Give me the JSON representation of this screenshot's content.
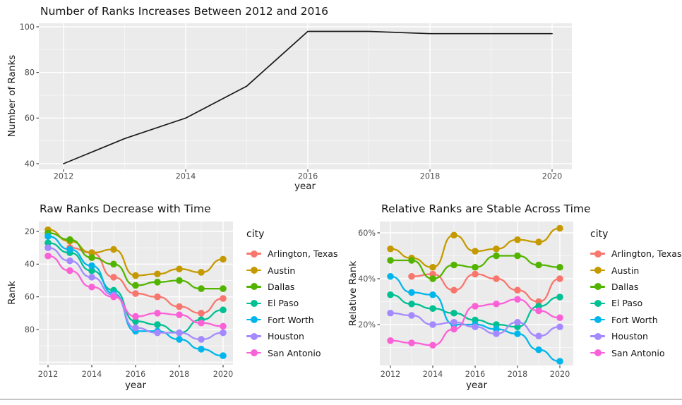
{
  "figure": {
    "background": "#ffffff",
    "panel_background": "#ebebeb",
    "grid_color": "#ffffff",
    "axis_text_color": "#4d4d4d",
    "tick_mark_color": "#333333",
    "title_color": "#141414",
    "bottom_rule_color": "#c6c6c6"
  },
  "chart_data": [
    {
      "type": "line",
      "title": "Number of Ranks Increases Between 2012 and 2016",
      "xlabel": "year",
      "ylabel": "Number of Ranks",
      "x": [
        2012,
        2013,
        2014,
        2015,
        2016,
        2017,
        2018,
        2019,
        2020
      ],
      "values": [
        40,
        51,
        60,
        74,
        98,
        98,
        97,
        97,
        97
      ],
      "line_color": "#1a1a1a",
      "xticks": [
        "2012",
        "2014",
        "2016",
        "2018",
        "2020"
      ],
      "xtick_values": [
        2012,
        2014,
        2016,
        2018,
        2020
      ],
      "yticks": [
        "40",
        "60",
        "80",
        "100"
      ],
      "ytick_values": [
        40,
        60,
        80,
        100
      ],
      "ylim": [
        37,
        102
      ],
      "grid": true,
      "legend": false
    },
    {
      "type": "line",
      "title": "Raw Ranks Decrease with Time",
      "xlabel": "year",
      "ylabel": "Rank",
      "y_reversed": true,
      "legend_title": "city",
      "legend_position": "right",
      "x": [
        2012,
        2013,
        2014,
        2015,
        2016,
        2017,
        2018,
        2019,
        2020
      ],
      "series": [
        {
          "name": "Arlington, Texas",
          "color": "#F8766D",
          "values": [
            null,
            30,
            33,
            48,
            58,
            60,
            66,
            70,
            61
          ]
        },
        {
          "name": "Austin",
          "color": "#C49A00",
          "values": [
            19,
            26,
            33,
            31,
            47,
            46,
            43,
            45,
            37
          ]
        },
        {
          "name": "Dallas",
          "color": "#53B400",
          "values": [
            21,
            25,
            36,
            40,
            53,
            51,
            50,
            55,
            55
          ]
        },
        {
          "name": "El Paso",
          "color": "#00C094",
          "values": [
            27,
            33,
            44,
            56,
            75,
            77,
            82,
            74,
            68
          ]
        },
        {
          "name": "Fort Worth",
          "color": "#00B6EB",
          "values": [
            23,
            31,
            41,
            58,
            81,
            81,
            86,
            92,
            96
          ]
        },
        {
          "name": "Houston",
          "color": "#A58AFF",
          "values": [
            30,
            38,
            48,
            59,
            79,
            82,
            82,
            86,
            82
          ]
        },
        {
          "name": "San Antonio",
          "color": "#FB61D7",
          "values": [
            35,
            44,
            54,
            60,
            72,
            70,
            71,
            76,
            78
          ]
        }
      ],
      "xticks": [
        "2012",
        "2014",
        "2016",
        "2018",
        "2020"
      ],
      "xtick_values": [
        2012,
        2014,
        2016,
        2018,
        2020
      ],
      "yticks": [
        "20",
        "40",
        "60",
        "80"
      ],
      "ytick_values": [
        20,
        40,
        60,
        80
      ],
      "ylim": [
        14,
        101
      ],
      "grid": true
    },
    {
      "type": "line",
      "title": "Relative Ranks are Stable Across Time",
      "xlabel": "year",
      "ylabel": "Relative Rank",
      "y_unit": "%",
      "legend_title": "city",
      "legend_position": "right",
      "x": [
        2012,
        2013,
        2014,
        2015,
        2016,
        2017,
        2018,
        2019,
        2020
      ],
      "series": [
        {
          "name": "Arlington, Texas",
          "color": "#F8766D",
          "values": [
            null,
            41,
            42,
            35,
            42,
            40,
            35,
            30,
            40
          ]
        },
        {
          "name": "Austin",
          "color": "#C49A00",
          "values": [
            53,
            49,
            45,
            59,
            52,
            53,
            57,
            56,
            62
          ]
        },
        {
          "name": "Dallas",
          "color": "#53B400",
          "values": [
            48,
            48,
            40,
            46,
            45,
            50,
            50,
            46,
            45
          ]
        },
        {
          "name": "El Paso",
          "color": "#00C094",
          "values": [
            33,
            29,
            27,
            25,
            22,
            20,
            19,
            28,
            32
          ]
        },
        {
          "name": "Fort Worth",
          "color": "#00B6EB",
          "values": [
            41,
            34,
            33,
            20,
            20,
            18,
            16,
            9,
            4
          ]
        },
        {
          "name": "Houston",
          "color": "#A58AFF",
          "values": [
            25,
            24,
            20,
            21,
            19,
            16,
            21,
            15,
            19
          ]
        },
        {
          "name": "San Antonio",
          "color": "#FB61D7",
          "values": [
            13,
            12,
            11,
            18,
            28,
            29,
            31,
            26,
            23
          ]
        }
      ],
      "xticks": [
        "2012",
        "2014",
        "2016",
        "2018",
        "2020"
      ],
      "xtick_values": [
        2012,
        2014,
        2016,
        2018,
        2020
      ],
      "yticks": [
        "20%",
        "40%",
        "60%"
      ],
      "ytick_values": [
        20,
        40,
        60
      ],
      "ylim": [
        2,
        65
      ],
      "grid": true
    }
  ]
}
